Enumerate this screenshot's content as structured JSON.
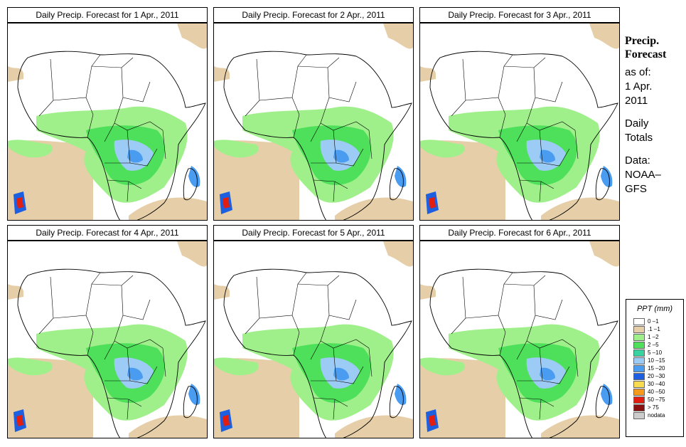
{
  "panels": [
    {
      "title": "Daily Precip. Forecast for  1 Apr., 2011"
    },
    {
      "title": "Daily Precip. Forecast for  2 Apr., 2011"
    },
    {
      "title": "Daily Precip. Forecast for  3 Apr., 2011"
    },
    {
      "title": "Daily Precip. Forecast for  4 Apr., 2011"
    },
    {
      "title": "Daily Precip. Forecast for  5 Apr., 2011"
    },
    {
      "title": "Daily Precip. Forecast for  6 Apr., 2011"
    }
  ],
  "sidebar": {
    "title_line1": "Precip.",
    "title_line2": "Forecast",
    "asof_line1": "as of:",
    "asof_line2": "1 Apr.",
    "asof_line3": "2011",
    "daily_line1": "Daily",
    "daily_line2": "Totals",
    "data_line1": "Data:",
    "data_line2": "NOAA–",
    "data_line3": "GFS"
  },
  "legend": {
    "title": "PPT (mm)",
    "items": [
      {
        "label": "0 –1",
        "color": "#ffffff"
      },
      {
        "label": ".1 –1",
        "color": "#e6cfa8"
      },
      {
        "label": "1 –2",
        "color": "#9ff08a"
      },
      {
        "label": "2 –5",
        "color": "#4ee05a"
      },
      {
        "label": "5 –10",
        "color": "#38d3a0"
      },
      {
        "label": "10 –15",
        "color": "#9ccbf5"
      },
      {
        "label": "15 –20",
        "color": "#4a9cf0"
      },
      {
        "label": "20 –30",
        "color": "#1c5fe0"
      },
      {
        "label": "30 –40",
        "color": "#f7dc50"
      },
      {
        "label": "40 –50",
        "color": "#f59a1c"
      },
      {
        "label": "50 –75",
        "color": "#e11e0f"
      },
      {
        "label": "> 75",
        "color": "#8a1010"
      },
      {
        "label": "nodata",
        "color": "#cccccc"
      }
    ]
  }
}
